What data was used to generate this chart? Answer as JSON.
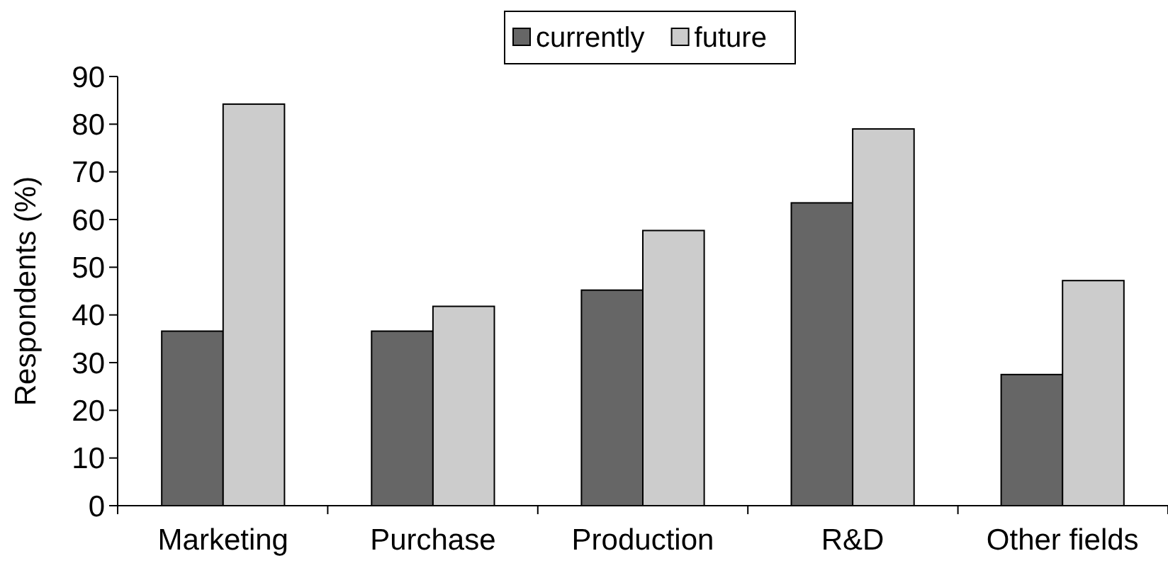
{
  "chart_data": {
    "type": "bar",
    "ylabel": "Respondents (%)",
    "categories": [
      "Marketing",
      "Purchase",
      "Production",
      "R&D",
      "Other fields"
    ],
    "series": [
      {
        "name": "currently",
        "color": "#666666",
        "values": [
          36.6,
          36.6,
          45.2,
          63.5,
          27.5
        ]
      },
      {
        "name": "future",
        "color": "#cccccc",
        "values": [
          84.2,
          41.8,
          57.7,
          79.0,
          47.2
        ]
      }
    ],
    "ylim": [
      0,
      90
    ],
    "yticks": [
      0,
      10,
      20,
      30,
      40,
      50,
      60,
      70,
      80,
      90
    ],
    "grid": false,
    "legend": "top"
  }
}
